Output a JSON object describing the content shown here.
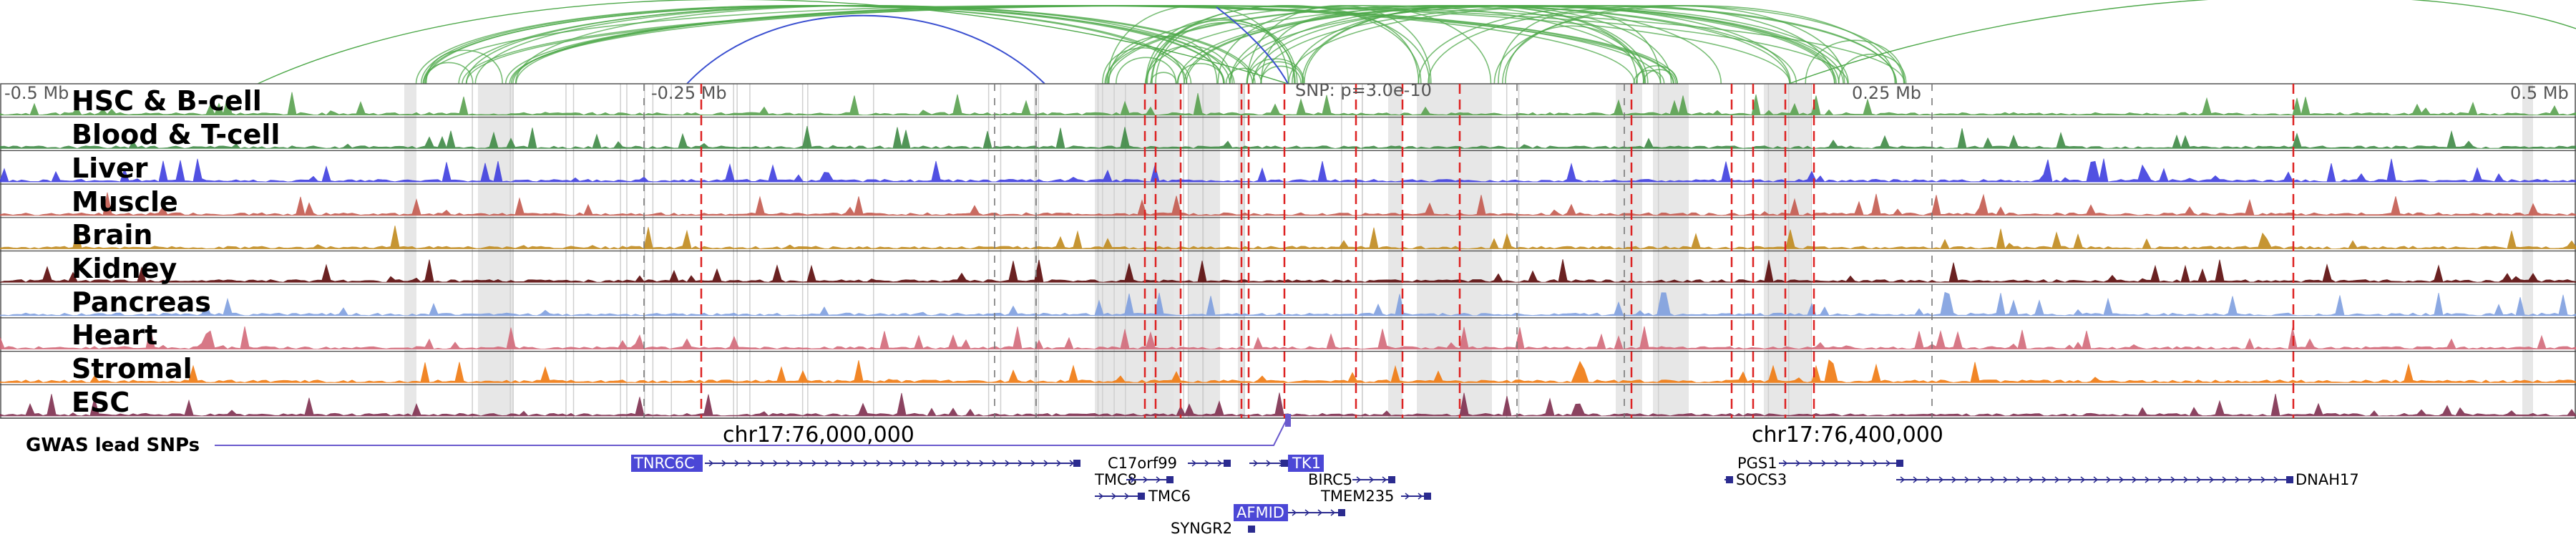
{
  "scale_labels": [
    "-0.5 Mb",
    "-0.25 Mb",
    "SNP: p=3.0e-10",
    "0.25 Mb",
    "0.5 Mb"
  ],
  "tracks": [
    {
      "name": "HSC & B-cell",
      "color": "#59a14f"
    },
    {
      "name": "Blood & T-cell",
      "color": "#3f8a45"
    },
    {
      "name": "Liver",
      "color": "#3f3fdf"
    },
    {
      "name": "Muscle",
      "color": "#c45a4f"
    },
    {
      "name": "Brain",
      "color": "#c08a1e"
    },
    {
      "name": "Kidney",
      "color": "#5a0a0a"
    },
    {
      "name": "Pancreas",
      "color": "#7f9fdf"
    },
    {
      "name": "Heart",
      "color": "#d36a7a"
    },
    {
      "name": "Stromal",
      "color": "#f07a10"
    },
    {
      "name": "ESC",
      "color": "#7f2f4f"
    }
  ],
  "gwas": {
    "label": "GWAS lead SNPs",
    "color": "#6a5acd"
  },
  "coordinates": [
    "chr17:76,000,000",
    "chr17:76,400,000"
  ],
  "genes": [
    {
      "name": "TNRC6C",
      "highlight": true
    },
    {
      "name": "C17orf99",
      "highlight": false
    },
    {
      "name": "TK1",
      "highlight": true
    },
    {
      "name": "TMC8",
      "highlight": false
    },
    {
      "name": "BIRC5",
      "highlight": false
    },
    {
      "name": "TMC6",
      "highlight": false
    },
    {
      "name": "TMEM235",
      "highlight": false
    },
    {
      "name": "AFMID",
      "highlight": true
    },
    {
      "name": "SYNGR2",
      "highlight": false
    },
    {
      "name": "PGS1",
      "highlight": false
    },
    {
      "name": "SOCS3",
      "highlight": false
    },
    {
      "name": "DNAH17",
      "highlight": false
    }
  ],
  "colors": {
    "arc": "#4ea84a",
    "arc_highlight": "#3a4fd0",
    "snp_line": "#dd2222",
    "gene": "#2b2b8f",
    "gene_highlight": "#4b47d6",
    "shading": "#e3e3e3"
  }
}
